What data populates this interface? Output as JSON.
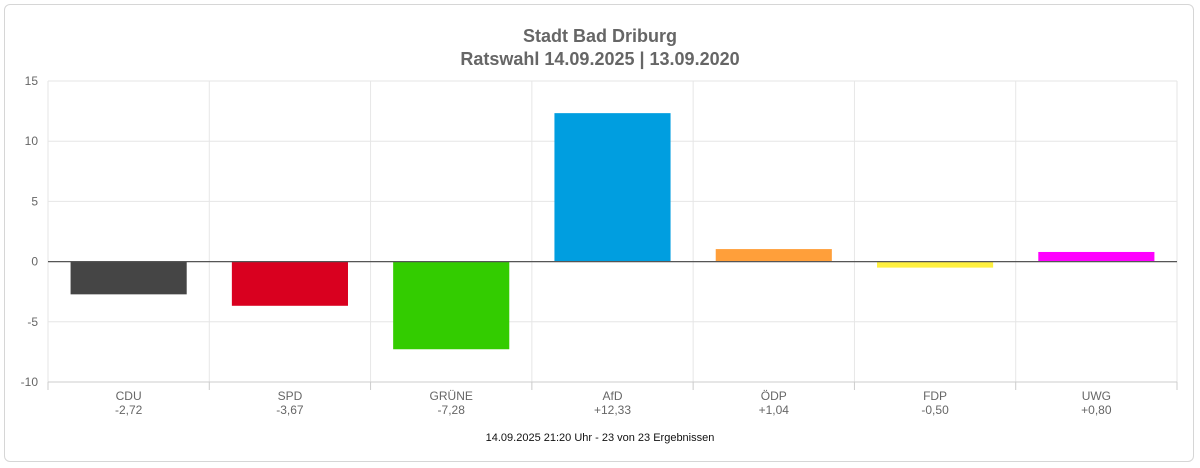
{
  "chart_data": {
    "type": "bar",
    "title": "Stadt Bad Driburg",
    "subtitle": "Ratswahl 14.09.2025  | 13.09.2020",
    "categories": [
      "CDU",
      "SPD",
      "GRÜNE",
      "AfD",
      "ÖDP",
      "FDP",
      "UWG"
    ],
    "value_labels": [
      "-2,72",
      "-3,67",
      "-7,28",
      "+12,33",
      "+1,04",
      "-0,50",
      "+0,80"
    ],
    "values": [
      -2.72,
      -3.67,
      -7.28,
      12.33,
      1.04,
      -0.5,
      0.8
    ],
    "colors": [
      "#454545",
      "#d9001f",
      "#33cc00",
      "#009ee0",
      "#ff9f3a",
      "#fff03f",
      "#ff00ff"
    ],
    "ylim": [
      -10,
      15
    ],
    "yticks": [
      15,
      10,
      5,
      0,
      -5,
      -10
    ],
    "grid": true,
    "legend": "none"
  },
  "footer": "14.09.2025 21:20 Uhr - 23 von 23 Ergebnissen"
}
